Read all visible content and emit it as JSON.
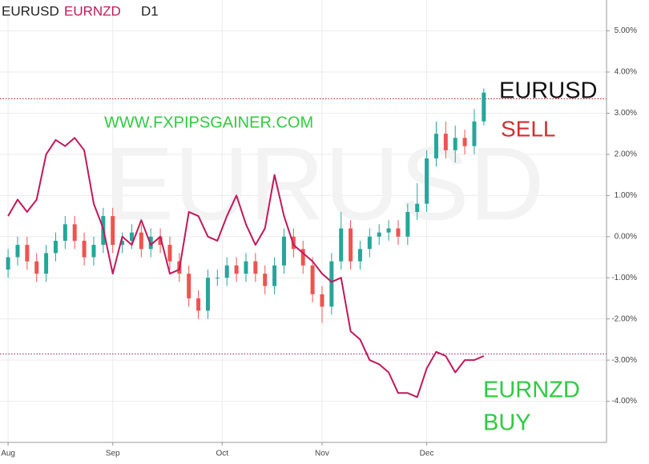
{
  "chart_data": {
    "type": "candlestick",
    "legend": [
      "EURUSD",
      "EURNZD",
      "D1"
    ],
    "legend_colors": [
      "#222222",
      "#c2185b",
      "#222222"
    ],
    "x": [
      0,
      2,
      4,
      6,
      8,
      10,
      12,
      14,
      16,
      18,
      20,
      22,
      24,
      26,
      28,
      30,
      32,
      34,
      36,
      38,
      40,
      42,
      44,
      46,
      48,
      50,
      52,
      54,
      56,
      58,
      60,
      62,
      64,
      66,
      68,
      70,
      72,
      74,
      76,
      78,
      80,
      82,
      84,
      86,
      88,
      90,
      92,
      94,
      96,
      98,
      100
    ],
    "xlim": [
      -1.7,
      125.8
    ],
    "xticks": [
      {
        "value": 0,
        "label": "Aug"
      },
      {
        "value": 22,
        "label": "Sep"
      },
      {
        "value": 45,
        "label": "Oct"
      },
      {
        "value": 66,
        "label": "Nov"
      },
      {
        "value": 88,
        "label": "Dec"
      }
    ],
    "ylim": [
      -5,
      5.75
    ],
    "yticks": [
      {
        "value": 5,
        "label": "5.00%"
      },
      {
        "value": 4,
        "label": "4.00%"
      },
      {
        "value": 3,
        "label": "3.00%"
      },
      {
        "value": 2,
        "label": "2.00%"
      },
      {
        "value": 1,
        "label": "1.00%"
      },
      {
        "value": 0,
        "label": "0.00%"
      },
      {
        "value": -1,
        "label": "-1.00%"
      },
      {
        "value": -2,
        "label": "-2.00%"
      },
      {
        "value": -3,
        "label": "-3.00%"
      },
      {
        "value": -4,
        "label": "-4.00%"
      }
    ],
    "grid": true,
    "series": [
      {
        "name": "EURUSD",
        "type": "candlestick",
        "up_color": "#26a69a",
        "down_color": "#ef5350",
        "open": [
          -0.8,
          -0.5,
          -0.2,
          -0.6,
          -0.9,
          -0.4,
          -0.1,
          0.3,
          -0.1,
          -0.5,
          -0.2,
          0.5,
          -0.2,
          -0.1,
          0.1,
          -0.3,
          0.0,
          -0.2,
          -0.6,
          -0.9,
          -1.5,
          -1.8,
          -1.0,
          -1.0,
          -0.7,
          -0.9,
          -0.6,
          -0.9,
          -1.2,
          -0.7,
          0.0,
          -0.3,
          -0.7,
          -1.4,
          -1.7,
          -0.6,
          0.2,
          -0.6,
          -0.3,
          0.0,
          0.1,
          0.2,
          0.0,
          0.6,
          0.8,
          1.9,
          2.5,
          2.1,
          2.4,
          2.2,
          2.8
        ],
        "high": [
          -0.3,
          0.0,
          0.0,
          -0.4,
          -0.2,
          0.1,
          0.5,
          0.5,
          0.1,
          0.0,
          0.7,
          0.7,
          0.1,
          0.3,
          0.3,
          0.2,
          0.2,
          0.0,
          -0.4,
          -0.7,
          -1.3,
          -0.8,
          -0.8,
          -0.5,
          -0.5,
          -0.4,
          -0.4,
          -0.7,
          -0.5,
          0.2,
          0.2,
          -0.1,
          -0.5,
          -1.2,
          -0.4,
          0.6,
          0.4,
          -0.1,
          0.2,
          0.3,
          0.4,
          0.4,
          0.8,
          1.3,
          2.1,
          2.8,
          2.8,
          2.7,
          2.6,
          3.1,
          3.6
        ],
        "low": [
          -1.0,
          -0.7,
          -0.8,
          -1.1,
          -1.1,
          -0.6,
          -0.3,
          -0.3,
          -0.7,
          -0.7,
          -0.4,
          -0.4,
          -0.4,
          -0.3,
          -0.5,
          -0.5,
          -0.4,
          -0.8,
          -1.1,
          -1.7,
          -2.0,
          -2.0,
          -1.2,
          -1.2,
          -1.1,
          -1.1,
          -1.1,
          -1.4,
          -1.4,
          -0.9,
          -0.5,
          -0.9,
          -1.6,
          -2.1,
          -1.9,
          -0.8,
          -0.8,
          -0.8,
          -0.5,
          -0.2,
          -0.1,
          -0.2,
          -0.2,
          0.4,
          0.6,
          1.7,
          1.9,
          1.8,
          2.0,
          2.0,
          2.7
        ],
        "close": [
          -0.5,
          -0.2,
          -0.6,
          -0.9,
          -0.4,
          -0.1,
          0.3,
          -0.1,
          -0.5,
          -0.2,
          0.5,
          -0.2,
          -0.1,
          0.1,
          -0.3,
          0.0,
          -0.2,
          -0.6,
          -0.9,
          -1.5,
          -1.8,
          -1.0,
          -1.0,
          -0.7,
          -0.9,
          -0.6,
          -0.9,
          -1.2,
          -0.7,
          0.0,
          -0.3,
          -0.7,
          -1.4,
          -1.7,
          -0.6,
          0.2,
          -0.6,
          -0.3,
          0.0,
          0.1,
          0.2,
          0.0,
          0.6,
          0.8,
          1.9,
          2.5,
          2.1,
          2.4,
          2.2,
          2.8,
          3.5
        ]
      },
      {
        "name": "EURNZD",
        "type": "line",
        "color": "#c2185b",
        "values": [
          0.5,
          0.9,
          0.6,
          0.9,
          2.0,
          2.35,
          2.2,
          2.4,
          2.1,
          0.8,
          0.2,
          -0.9,
          0.0,
          -0.2,
          0.4,
          -0.2,
          0.0,
          -0.9,
          -0.8,
          0.6,
          0.5,
          0.0,
          -0.1,
          0.5,
          1.0,
          0.3,
          -0.2,
          0.2,
          1.5,
          0.5,
          -0.2,
          -0.4,
          -0.6,
          -0.9,
          -1.1,
          -1.0,
          -2.3,
          -2.5,
          -3.0,
          -3.1,
          -3.3,
          -3.8,
          -3.8,
          -3.9,
          -3.2,
          -2.8,
          -2.9,
          -3.3,
          -3.0,
          -3.0,
          -2.9
        ]
      }
    ],
    "price_lines": [
      {
        "value": 3.35,
        "color": "#b71c1c"
      },
      {
        "value": -2.85,
        "color": "#8e1b6b"
      }
    ],
    "annotations": [
      {
        "text": "WWW.FXPIPSGAINER.COM",
        "color": "#2ecc40"
      },
      {
        "text": "EURUSD",
        "color": "#111111"
      },
      {
        "text": "SELL",
        "color": "#d32f2f"
      },
      {
        "text": "EURNZD",
        "color": "#2ecc40"
      },
      {
        "text": "BUY",
        "color": "#2ecc40"
      }
    ]
  }
}
